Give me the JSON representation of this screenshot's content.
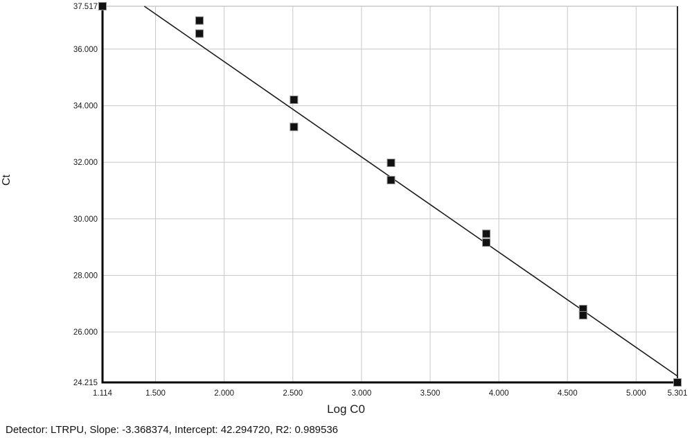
{
  "caption": {
    "text": "Detector: LTRPU, Slope: -3.368374, Intercept: 42.294720, R2: 0.989536"
  },
  "chart_data": {
    "type": "scatter",
    "title": "",
    "xlabel": "Log C0",
    "ylabel": "Ct",
    "xlim": [
      1.114,
      5.301
    ],
    "ylim": [
      24.215,
      37.517
    ],
    "grid": true,
    "legend": "none",
    "detector": "LTRPU",
    "x_ticks": [
      {
        "value": 1.114,
        "label": "1.114"
      },
      {
        "value": 1.5,
        "label": "1.500"
      },
      {
        "value": 2.0,
        "label": "2.000"
      },
      {
        "value": 2.5,
        "label": "2.500"
      },
      {
        "value": 3.0,
        "label": "3.000"
      },
      {
        "value": 3.5,
        "label": "3.500"
      },
      {
        "value": 4.0,
        "label": "4.000"
      },
      {
        "value": 4.5,
        "label": "4.500"
      },
      {
        "value": 5.0,
        "label": "5.000"
      },
      {
        "value": 5.301,
        "label": "5.301"
      }
    ],
    "y_ticks": [
      {
        "value": 37.517,
        "label": "37.517"
      },
      {
        "value": 36.0,
        "label": "36.000"
      },
      {
        "value": 34.0,
        "label": "34.000"
      },
      {
        "value": 32.0,
        "label": "32.000"
      },
      {
        "value": 30.0,
        "label": "30.000"
      },
      {
        "value": 28.0,
        "label": "28.000"
      },
      {
        "value": 26.0,
        "label": "26.000"
      },
      {
        "value": 24.215,
        "label": "24.215"
      }
    ],
    "points": [
      {
        "x": 1.114,
        "y": 37.517
      },
      {
        "x": 1.82,
        "y": 37.01
      },
      {
        "x": 1.82,
        "y": 36.55
      },
      {
        "x": 2.508,
        "y": 34.21
      },
      {
        "x": 2.508,
        "y": 33.25
      },
      {
        "x": 3.215,
        "y": 31.98
      },
      {
        "x": 3.215,
        "y": 31.37
      },
      {
        "x": 3.909,
        "y": 29.47
      },
      {
        "x": 3.909,
        "y": 29.16
      },
      {
        "x": 4.614,
        "y": 26.81
      },
      {
        "x": 4.614,
        "y": 26.59
      },
      {
        "x": 5.301,
        "y": 24.215
      }
    ],
    "fit": {
      "slope": -3.368374,
      "intercept": 42.29472,
      "r2": 0.989536
    },
    "marker": {
      "shape": "square",
      "size": 11,
      "color": "#111111",
      "outline": "#8f8f8f"
    },
    "colors": {
      "grid": "#c8c8c8",
      "axis": "#000000",
      "top_border": "#c8c8c8",
      "right_border": "#2a2a2a",
      "fit_line": "#1a1a1a",
      "background": "#ffffff"
    }
  }
}
